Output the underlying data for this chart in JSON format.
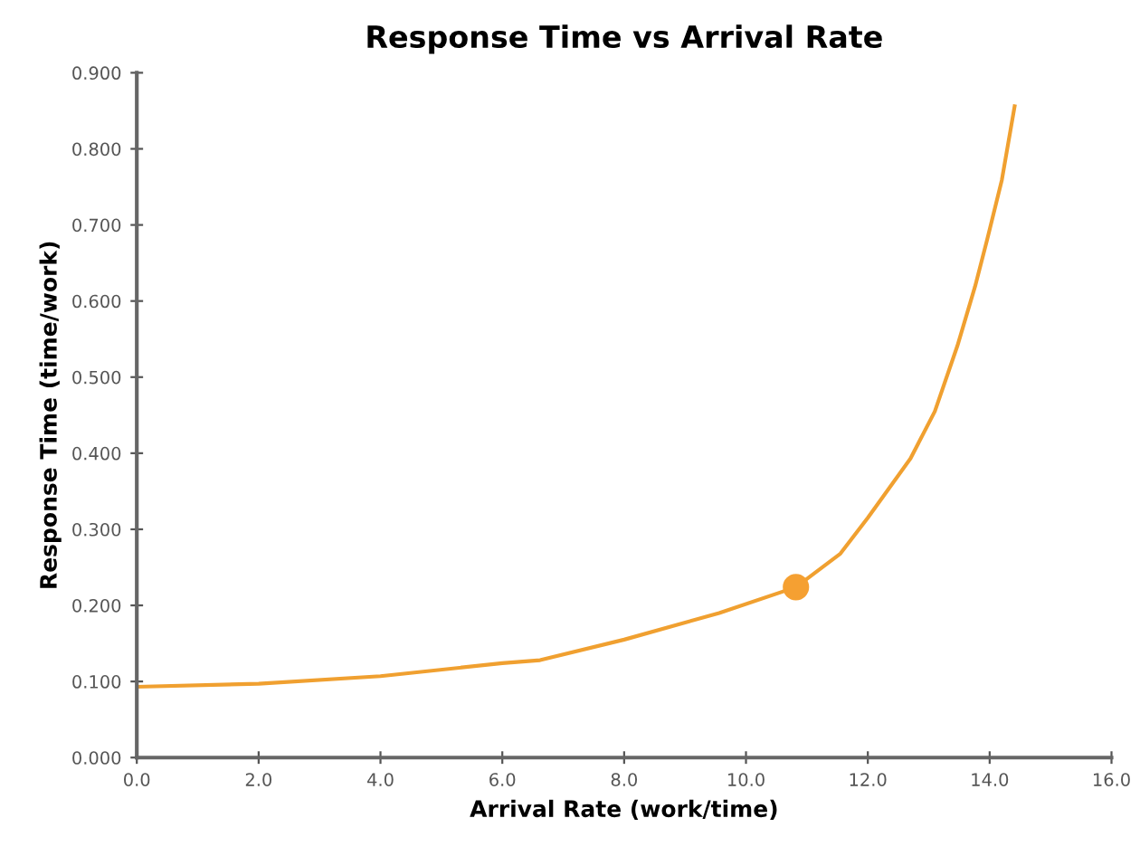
{
  "chart_data": {
    "type": "line",
    "title": "Response Time vs Arrival Rate",
    "xlabel": "Arrival Rate (work/time)",
    "ylabel": "Response Time (time/work)",
    "series": [
      {
        "color": "#f0a030",
        "x": [
          0,
          2,
          4,
          6,
          6.62,
          8,
          9.56,
          10.82,
          11.55,
          12,
          12.7,
          13.1,
          13.47,
          13.76,
          13.96,
          14.2,
          14.41
        ],
        "values": [
          0.093,
          0.097,
          0.107,
          0.124,
          0.128,
          0.155,
          0.19,
          0.224,
          0.268,
          0.315,
          0.393,
          0.455,
          0.541,
          0.619,
          0.681,
          0.759,
          0.856
        ]
      },
      {
        "type": "scatter",
        "color": "#f5a032",
        "marker": "circle",
        "x": [
          10.82
        ],
        "values": [
          0.224
        ]
      }
    ],
    "xlim": [
      0,
      16
    ],
    "ylim": [
      0,
      0.9
    ],
    "xticks": [
      {
        "value": 0,
        "label": "0.0"
      },
      {
        "value": 2,
        "label": "2.0"
      },
      {
        "value": 4,
        "label": "4.0"
      },
      {
        "value": 6,
        "label": "6.0"
      },
      {
        "value": 8,
        "label": "8.0"
      },
      {
        "value": 10,
        "label": "10.0"
      },
      {
        "value": 12,
        "label": "12.0"
      },
      {
        "value": 14,
        "label": "14.0"
      },
      {
        "value": 16,
        "label": "16.0"
      }
    ],
    "yticks": [
      {
        "value": 0,
        "label": "0.000"
      },
      {
        "value": 0.1,
        "label": "0.100"
      },
      {
        "value": 0.2,
        "label": "0.200"
      },
      {
        "value": 0.3,
        "label": "0.300"
      },
      {
        "value": 0.4,
        "label": "0.400"
      },
      {
        "value": 0.5,
        "label": "0.500"
      },
      {
        "value": 0.6,
        "label": "0.600"
      },
      {
        "value": 0.7,
        "label": "0.700"
      },
      {
        "value": 0.8,
        "label": "0.800"
      },
      {
        "value": 0.9,
        "label": "0.900"
      }
    ],
    "grid": false,
    "legend": false
  }
}
